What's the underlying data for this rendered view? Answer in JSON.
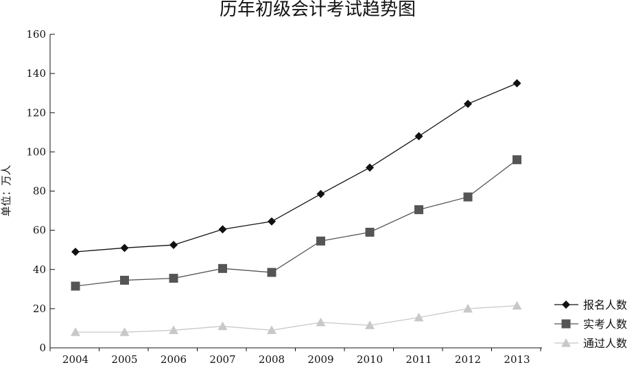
{
  "chart_data": {
    "type": "line",
    "title": "历年初级会计考试趋势图",
    "xlabel": "",
    "ylabel": "单位：万人",
    "categories": [
      "2004",
      "2005",
      "2006",
      "2007",
      "2008",
      "2009",
      "2010",
      "2011",
      "2012",
      "2013"
    ],
    "ylim": [
      0,
      160
    ],
    "yticks": [
      "0",
      "20",
      "40",
      "60",
      "80",
      "100",
      "120",
      "140",
      "160"
    ],
    "grid": false,
    "legend_position": "right",
    "series": [
      {
        "name": "报名人数",
        "marker": "diamond",
        "color": "#111111",
        "values": [
          49,
          51,
          52.5,
          60.5,
          64.5,
          78.5,
          92,
          108,
          124.5,
          135
        ]
      },
      {
        "name": "实考人数",
        "marker": "square",
        "color": "#555555",
        "values": [
          31.5,
          34.5,
          35.5,
          40.5,
          38.5,
          54.5,
          59,
          70.5,
          77,
          96
        ]
      },
      {
        "name": "通过人数",
        "marker": "triangle",
        "color": "#c8c8c8",
        "values": [
          8,
          8,
          9,
          11,
          9,
          13,
          11.5,
          15.5,
          20,
          21.5
        ]
      }
    ]
  }
}
